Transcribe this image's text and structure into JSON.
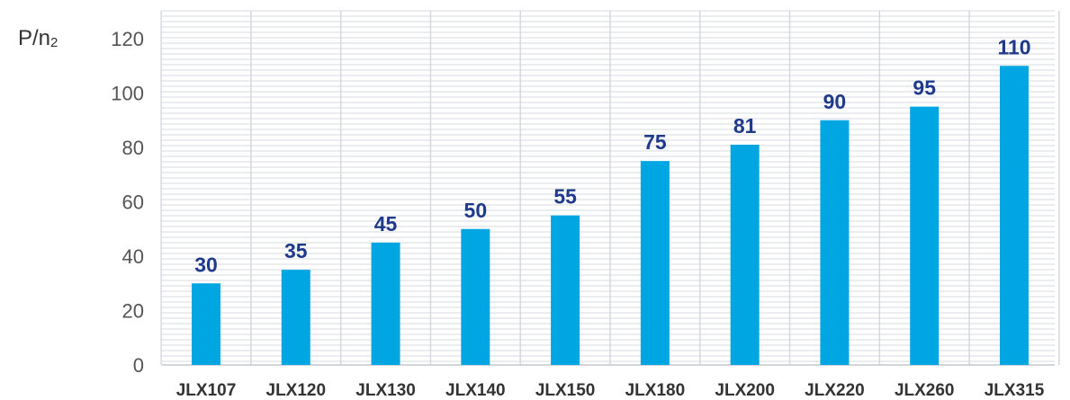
{
  "chart_data": {
    "type": "bar",
    "ylabel_main": "P/n",
    "ylabel_sub": "2",
    "categories": [
      "JLX107",
      "JLX120",
      "JLX130",
      "JLX140",
      "JLX150",
      "JLX180",
      "JLX200",
      "JLX220",
      "JLX260",
      "JLX315"
    ],
    "values": [
      30,
      35,
      45,
      50,
      55,
      75,
      81,
      90,
      95,
      110
    ],
    "value_labels": [
      "30",
      "35",
      "45",
      "50",
      "55",
      "75",
      "81",
      "90",
      "95",
      "110"
    ],
    "yticks": [
      "0",
      "20",
      "40",
      "60",
      "80",
      "100",
      "120"
    ],
    "ylim": [
      0,
      120
    ],
    "grid": true,
    "colors": {
      "bar": "#00a6e2",
      "value_label": "#1f3a8a",
      "grid": "#d4d9e0",
      "axis_text": "#555555",
      "category_text": "#333333"
    }
  }
}
